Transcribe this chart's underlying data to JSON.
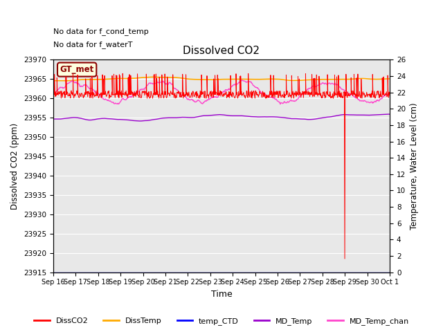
{
  "title": "Dissolved CO2",
  "xlabel": "Time",
  "ylabel_left": "Dissolved CO2 (ppm)",
  "ylabel_right": "Temperature, Water Level (cm)",
  "annotations": [
    "No data for f_cond_temp",
    "No data for f_waterT"
  ],
  "gt_met_label": "GT_met",
  "ylim_left": [
    23915,
    23970
  ],
  "ylim_right": [
    0,
    26
  ],
  "yticks_left": [
    23915,
    23920,
    23925,
    23930,
    23935,
    23940,
    23945,
    23950,
    23955,
    23960,
    23965,
    23970
  ],
  "yticks_right": [
    0,
    2,
    4,
    6,
    8,
    10,
    12,
    14,
    16,
    18,
    20,
    22,
    24,
    26
  ],
  "xticklabels": [
    "Sep 16",
    "Sep 17",
    "Sep 18",
    "Sep 19",
    "Sep 20",
    "Sep 21",
    "Sep 22",
    "Sep 23",
    "Sep 24",
    "Sep 25",
    "Sep 26",
    "Sep 27",
    "Sep 28",
    "Sep 29",
    "Sep 30",
    "Oct 1"
  ],
  "bg_color": "#e8e8e8",
  "grid_color": "#ffffff",
  "colors": {
    "DissCO2": "#ff0000",
    "DissTemp": "#ffaa00",
    "temp_CTD": "#0000ff",
    "MD_Temp": "#9900cc",
    "MD_Temp_chan": "#ff44cc"
  },
  "figsize": [
    6.4,
    4.8
  ],
  "dpi": 100
}
